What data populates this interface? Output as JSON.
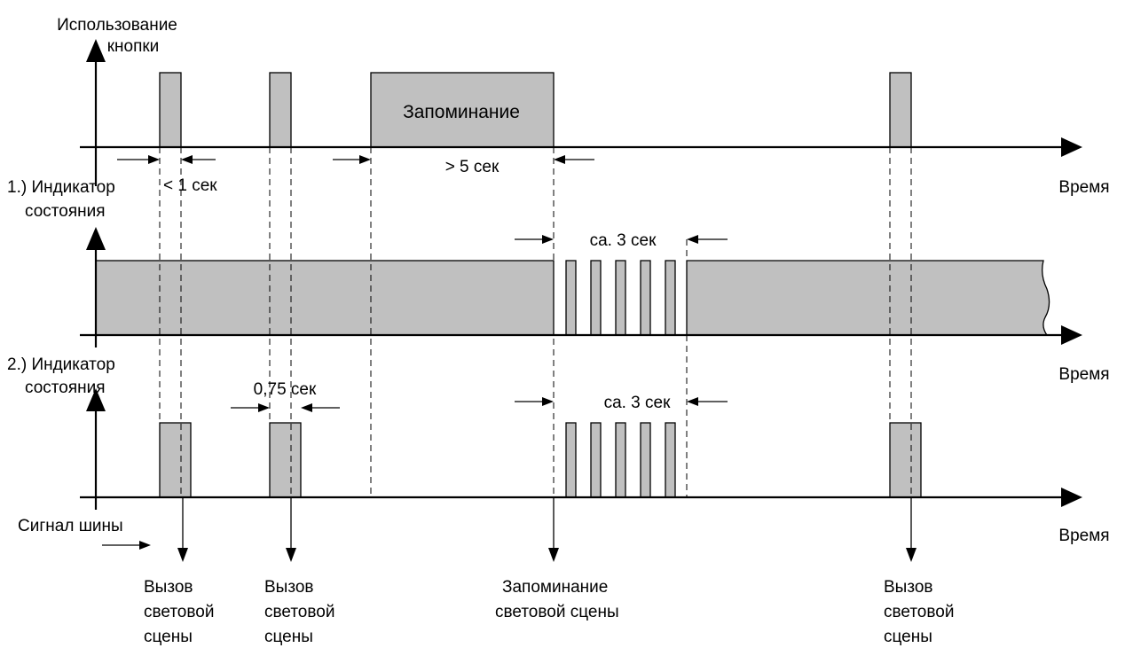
{
  "labels": {
    "button_use_line1": "Использование",
    "button_use_line2": "кнопки",
    "memorize": "Запоминание",
    "lt_1_sec": "< 1 сек",
    "gt_5_sec": "> 5 сек",
    "time_1": "Время",
    "time_2": "Время",
    "time_3": "Время",
    "indicator1_line1": "1.) Индикатор",
    "indicator1_line2": "состояния",
    "indicator2_line1": "2.) Индикатор",
    "indicator2_line2": "состояния",
    "ca3_top": "ca. 3 сек",
    "ca3_bottom": "ca. 3 сек",
    "sec_075": "0,75 сек",
    "bus_signal": "Сигнал шины",
    "call1": [
      "Вызов",
      "световой",
      "сцены"
    ],
    "call2": [
      "Вызов",
      "световой",
      "сцены"
    ],
    "store": [
      "Запоминание",
      "световой сцены"
    ],
    "call3": [
      "Вызов",
      "световой",
      "сцены"
    ]
  }
}
